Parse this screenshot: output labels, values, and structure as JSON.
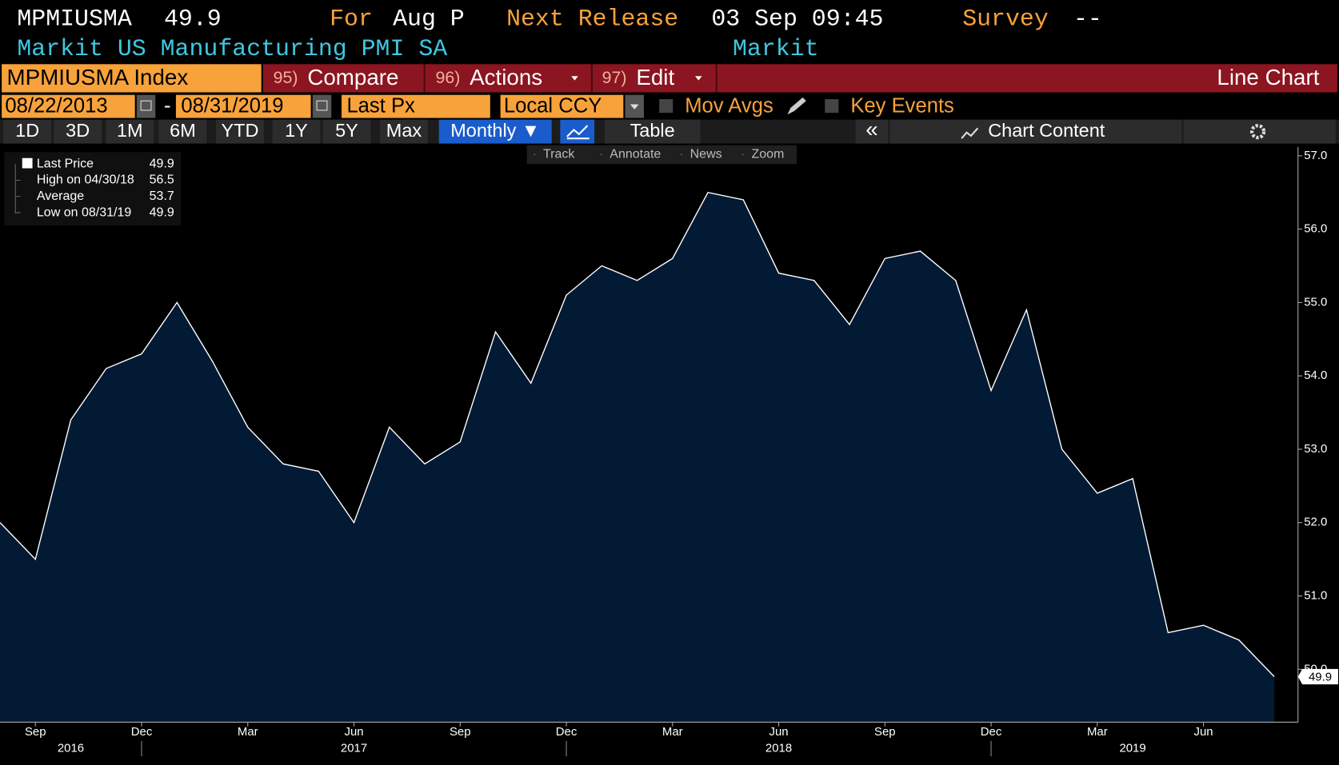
{
  "header": {
    "ticker": "MPMIUSMA",
    "last": "49.9",
    "for_label": "For",
    "for_value": "Aug P",
    "next_label": "Next Release",
    "next_value": "03 Sep 09:45",
    "survey_label": "Survey",
    "survey_value": "--",
    "name": "Markit US Manufacturing PMI SA",
    "source": "Markit"
  },
  "toolbar": {
    "security": "MPMIUSMA Index",
    "menus": [
      {
        "num": "95)",
        "label": "Compare"
      },
      {
        "num": "96)",
        "label": "Actions"
      },
      {
        "num": "97)",
        "label": "Edit"
      }
    ],
    "chart_type": "Line Chart"
  },
  "range_bar": {
    "start": "08/22/2013",
    "dash": "-",
    "end": "08/31/2019",
    "field": "Last Px",
    "currency": "Local CCY",
    "mov_avgs": "Mov Avgs",
    "key_events": "Key Events"
  },
  "period_bar": {
    "periods": [
      "1D",
      "3D",
      "1M",
      "6M",
      "YTD",
      "1Y",
      "5Y",
      "Max"
    ],
    "frequency": "Monthly ▼",
    "table": "Table",
    "collapse": "«",
    "chart_content": "Chart Content"
  },
  "tools": [
    "Track",
    "Annotate",
    "News",
    "Zoom"
  ],
  "legend": [
    {
      "label": "Last Price",
      "value": "49.9"
    },
    {
      "label": "High on 04/30/18",
      "value": "56.5"
    },
    {
      "label": "Average",
      "value": "53.7"
    },
    {
      "label": "Low on 08/31/19",
      "value": "49.9"
    }
  ],
  "chart_data": {
    "type": "area",
    "categories": [
      null,
      "Sep",
      null,
      null,
      "Dec",
      null,
      null,
      "Mar",
      null,
      null,
      "Jun",
      null,
      null,
      "Sep",
      null,
      null,
      "Dec",
      null,
      null,
      "Mar",
      null,
      null,
      "Jun",
      null,
      null,
      "Sep",
      null,
      null,
      "Dec",
      null,
      null,
      "Mar",
      null,
      null,
      "Jun",
      null,
      null
    ],
    "year_labels": [
      "2016",
      "2017",
      "2018",
      "2019"
    ],
    "series": [
      {
        "name": "Last Price",
        "color": "#ffffff",
        "fill": "#031a35",
        "values": [
          52.0,
          51.5,
          53.4,
          54.1,
          54.3,
          55.0,
          54.2,
          53.3,
          52.8,
          52.7,
          52.0,
          53.3,
          52.8,
          53.1,
          54.6,
          53.9,
          55.1,
          55.5,
          55.3,
          55.6,
          56.5,
          56.4,
          55.4,
          55.3,
          54.7,
          55.6,
          55.7,
          55.3,
          53.8,
          54.9,
          53.0,
          52.4,
          52.6,
          50.5,
          50.6,
          50.4,
          49.9
        ]
      }
    ],
    "last_value_label": "49.9",
    "ylim": [
      49.28,
      57.12
    ],
    "yticks": [
      {
        "value": 50,
        "label": "50.0"
      },
      {
        "value": 51,
        "label": "51.0"
      },
      {
        "value": 52,
        "label": "52.0"
      },
      {
        "value": 53,
        "label": "53.0"
      },
      {
        "value": 54,
        "label": "54.0"
      },
      {
        "value": 55,
        "label": "55.0"
      },
      {
        "value": 56,
        "label": "56.0"
      },
      {
        "value": 57,
        "label": "57.0"
      }
    ]
  }
}
